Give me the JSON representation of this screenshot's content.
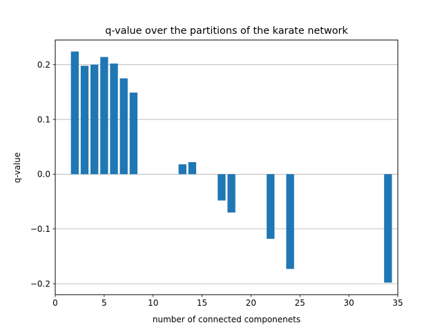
{
  "chart_data": {
    "type": "bar",
    "title": "q-value over the partitions of the karate network",
    "xlabel": "number of connected componenets",
    "ylabel": "q-value",
    "xlim": [
      0,
      35
    ],
    "ylim": [
      -0.22,
      0.245
    ],
    "xticks": [
      0,
      5,
      10,
      15,
      20,
      25,
      30,
      35
    ],
    "yticks": [
      -0.2,
      -0.1,
      0.0,
      0.1,
      0.2
    ],
    "ytick_labels": [
      "−0.2",
      "−0.1",
      "0.0",
      "0.1",
      "0.2"
    ],
    "grid": "y",
    "bar_color": "#1f77b4",
    "x": [
      2,
      3,
      4,
      5,
      6,
      7,
      8,
      13,
      14,
      17,
      18,
      22,
      24,
      34
    ],
    "values": [
      0.224,
      0.198,
      0.2,
      0.214,
      0.202,
      0.175,
      0.149,
      0.018,
      0.022,
      -0.048,
      -0.07,
      -0.118,
      -0.173,
      -0.198
    ]
  }
}
